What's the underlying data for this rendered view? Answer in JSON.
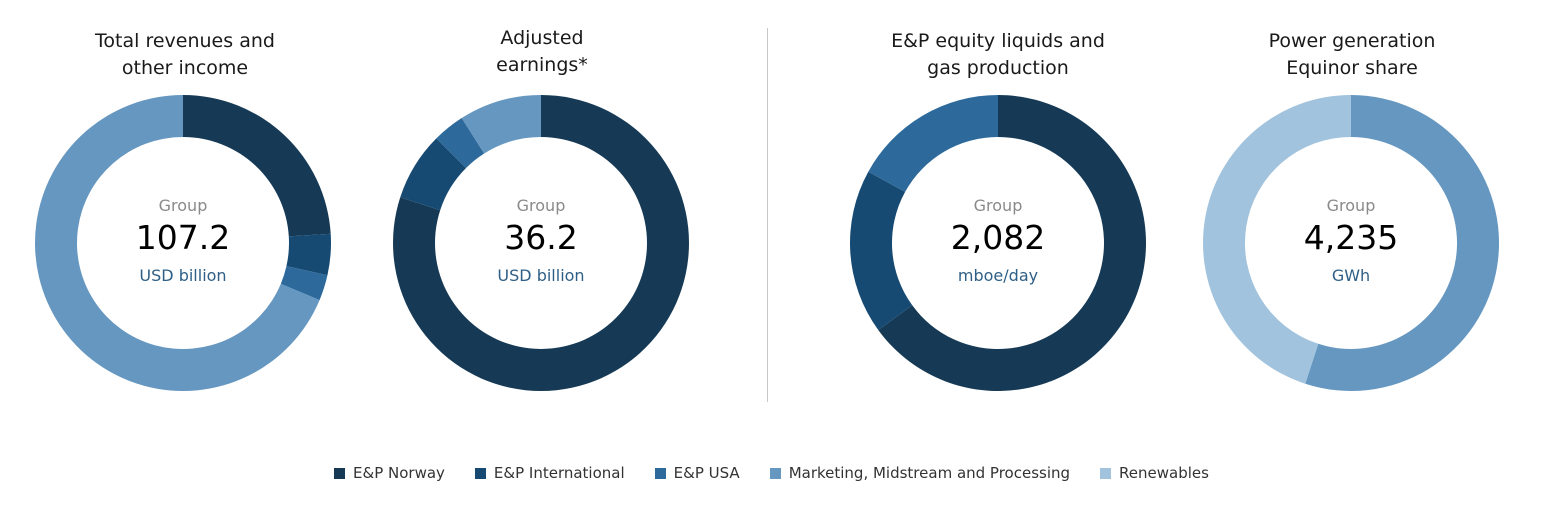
{
  "colors": {
    "E&P Norway": "#163a55",
    "E&P International": "#174a73",
    "E&P USA": "#2d6a9b",
    "Marketing, Midstream and Processing": "#6597c0",
    "Renewables": "#a1c3dd"
  },
  "chart_data": [
    {
      "type": "pie",
      "title": "Total revenues and\nother income",
      "center": {
        "label": "Group",
        "value": "107.2",
        "unit": "USD billion"
      },
      "slices": [
        {
          "name": "E&P Norway",
          "value": 24.0
        },
        {
          "name": "E&P International",
          "value": 4.5
        },
        {
          "name": "E&P USA",
          "value": 2.8
        },
        {
          "name": "Marketing, Midstream and Processing",
          "value": 68.7
        }
      ]
    },
    {
      "type": "pie",
      "title": "Adjusted\nearnings*",
      "center": {
        "label": "Group",
        "value": "36.2",
        "unit": "USD billion"
      },
      "slices": [
        {
          "name": "E&P Norway",
          "value": 80.0
        },
        {
          "name": "E&P International",
          "value": 7.5
        },
        {
          "name": "E&P USA",
          "value": 3.5
        },
        {
          "name": "Marketing, Midstream and Processing",
          "value": 9.0
        }
      ]
    },
    {
      "type": "pie",
      "title": "E&P equity liquids and\ngas production",
      "center": {
        "label": "Group",
        "value": "2,082",
        "unit": "mboe/day"
      },
      "slices": [
        {
          "name": "E&P Norway",
          "value": 65.0
        },
        {
          "name": "E&P International",
          "value": 18.0
        },
        {
          "name": "E&P USA",
          "value": 17.0
        }
      ]
    },
    {
      "type": "pie",
      "title": "Power generation\nEquinor share",
      "center": {
        "label": "Group",
        "value": "4,235",
        "unit": "GWh"
      },
      "slices": [
        {
          "name": "Marketing, Midstream and Processing",
          "value": 55.0
        },
        {
          "name": "Renewables",
          "value": 45.0
        }
      ]
    }
  ],
  "legend": [
    "E&P Norway",
    "E&P International",
    "E&P USA",
    "Marketing, Midstream and Processing",
    "Renewables"
  ]
}
